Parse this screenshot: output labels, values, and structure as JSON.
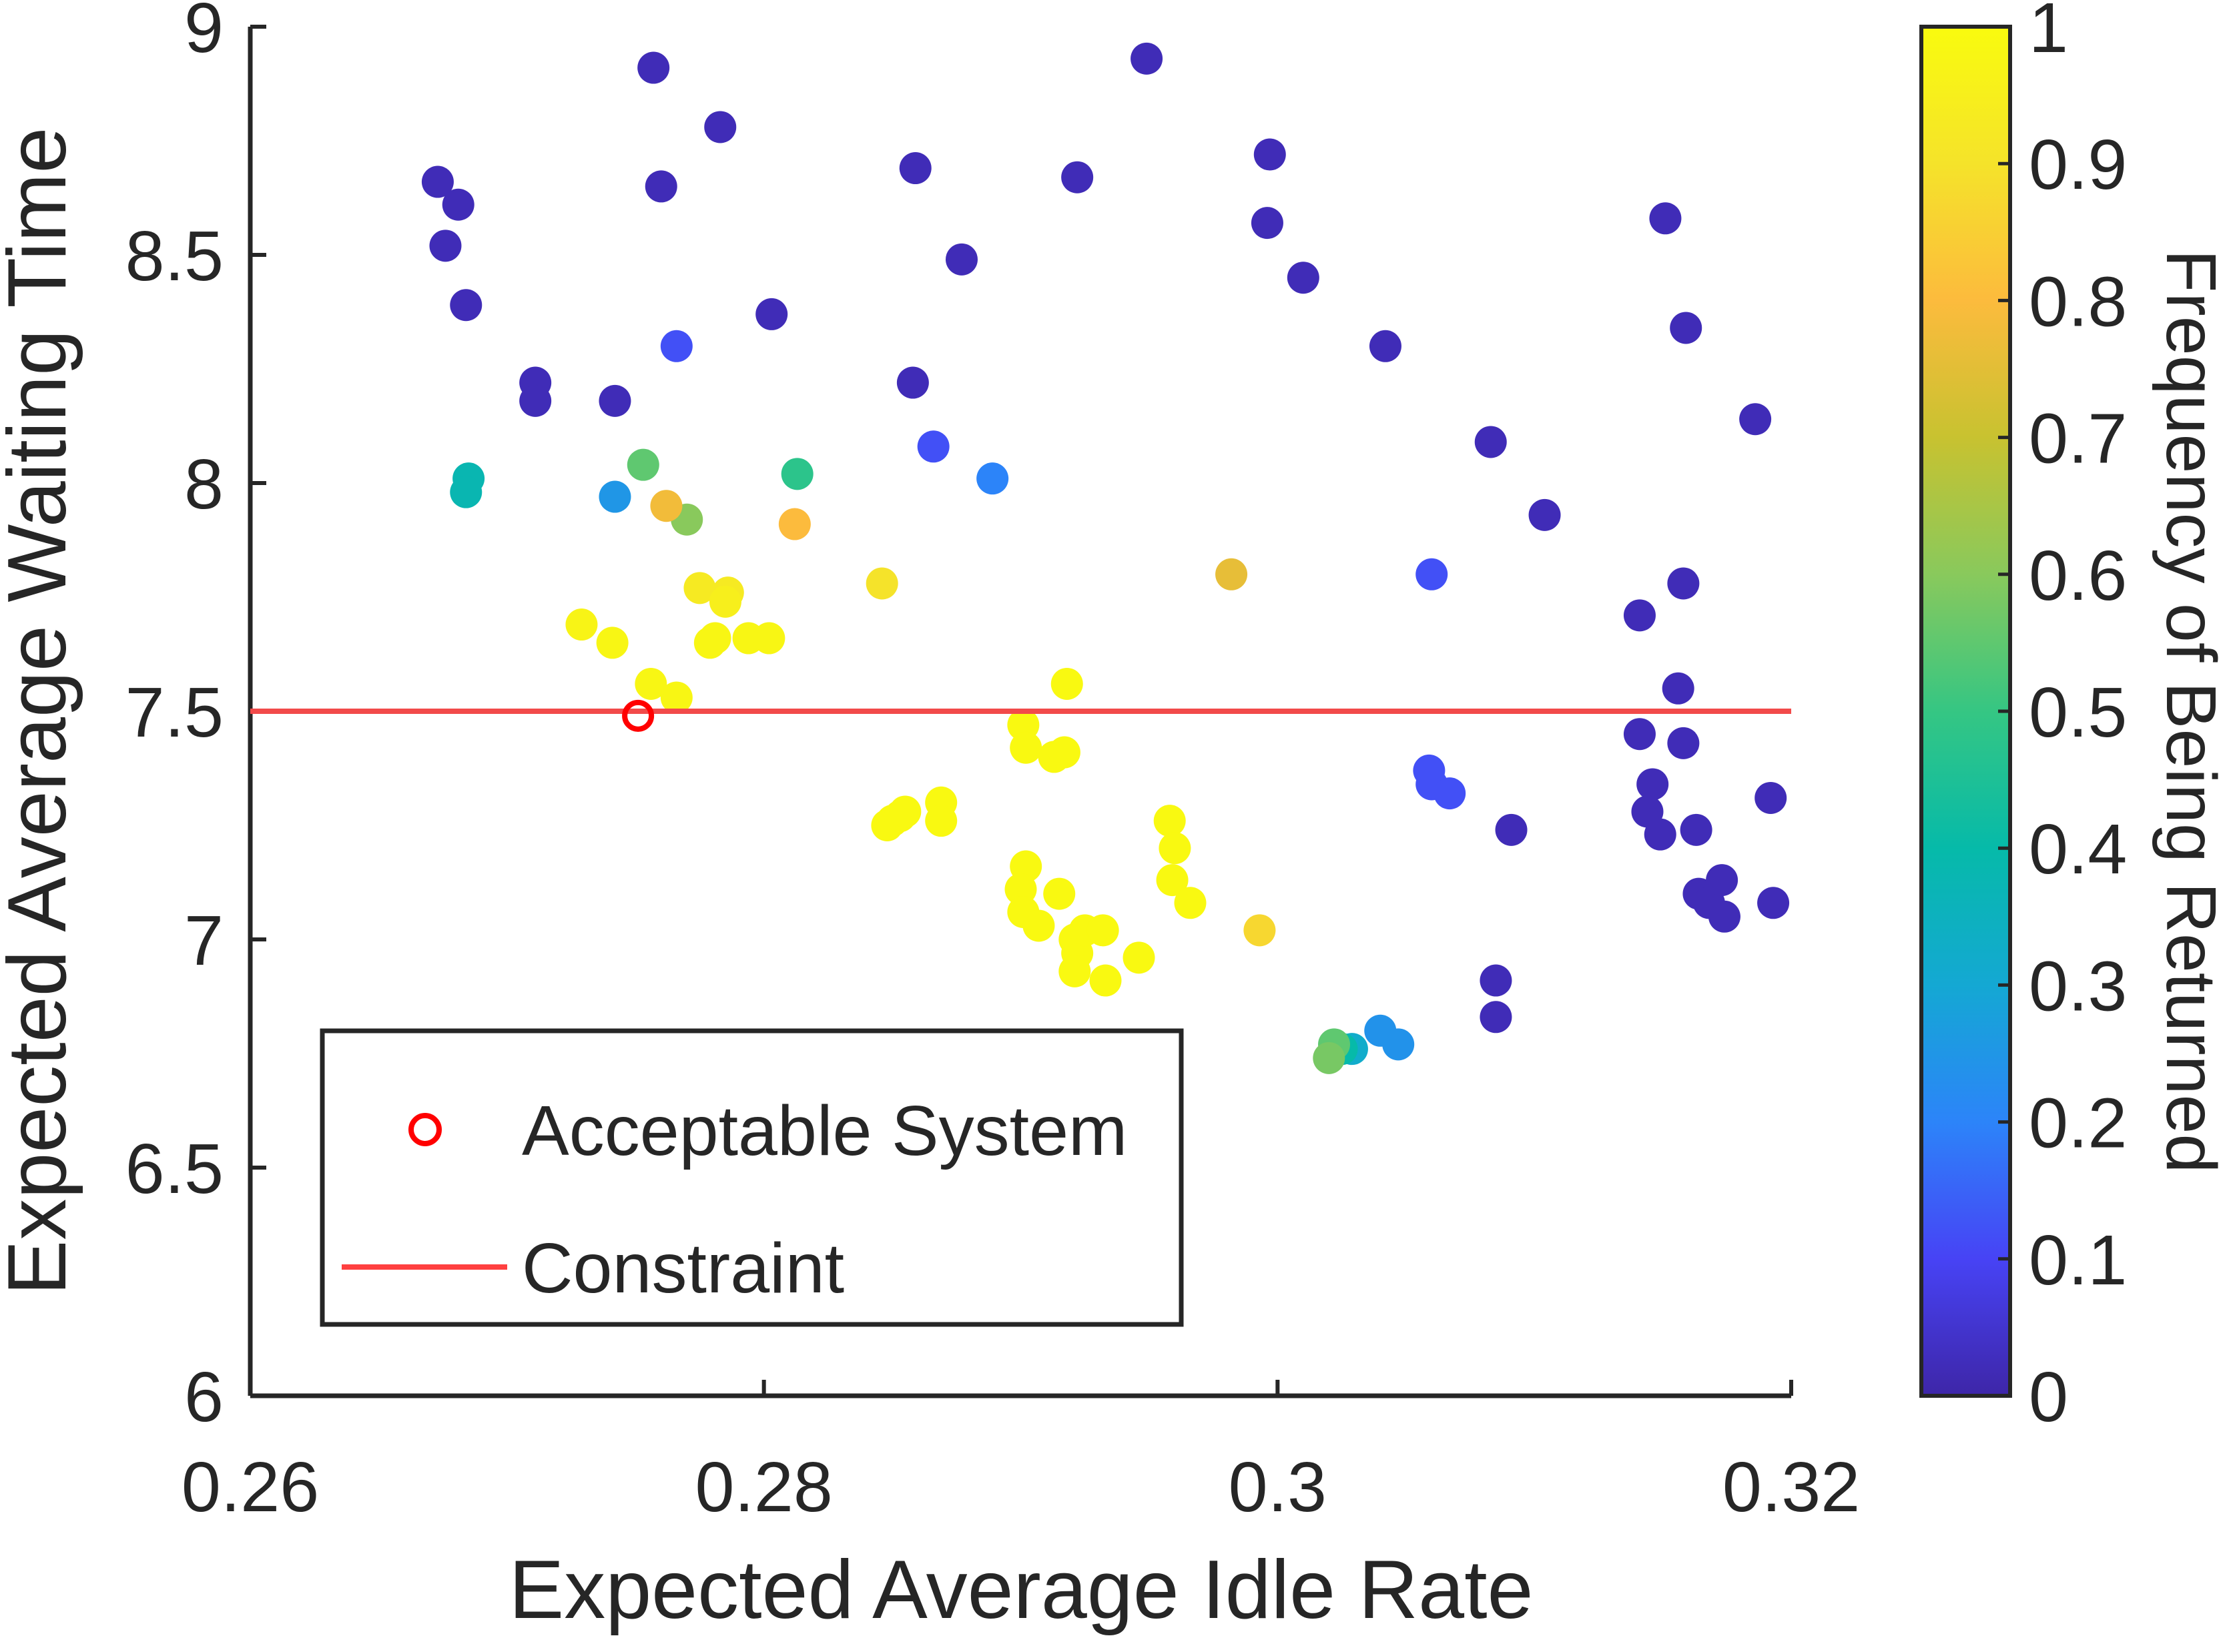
{
  "chart_data": {
    "type": "scatter",
    "title": "",
    "xlabel": "Expected Average Idle Rate",
    "ylabel": "Expected Average Waiting Time",
    "xlim": [
      0.26,
      0.32
    ],
    "ylim": [
      6,
      9
    ],
    "xticks": [
      0.26,
      0.28,
      0.3,
      0.32
    ],
    "xtick_labels": [
      "0.26",
      "0.28",
      "0.3",
      "0.32"
    ],
    "yticks": [
      6,
      6.5,
      7,
      7.5,
      8,
      8.5,
      9
    ],
    "ytick_labels": [
      "6",
      "6.5",
      "7",
      "7.5",
      "8",
      "8.5",
      "9"
    ],
    "grid": false,
    "colorbar": {
      "label": "Frequency of Being Returned",
      "range": [
        0,
        1
      ],
      "ticks": [
        0,
        0.1,
        0.2,
        0.3,
        0.4,
        0.5,
        0.6,
        0.7,
        0.8,
        0.9,
        1
      ],
      "tick_labels": [
        "0",
        "0.1",
        "0.2",
        "0.3",
        "0.4",
        "0.5",
        "0.6",
        "0.7",
        "0.8",
        "0.9",
        "1"
      ],
      "colormap": "parula",
      "colormap_stops": [
        "#3E26A8",
        "#4743F5",
        "#2C84F9",
        "#14A8D3",
        "#06BAA9",
        "#35C683",
        "#89C95C",
        "#C8C230",
        "#FCBB3D",
        "#F5E32A",
        "#F9FB0E"
      ]
    },
    "legend": {
      "position": "bottom-left",
      "entries": [
        {
          "label": "Acceptable System",
          "marker": "circle-open",
          "color": "#FF0000"
        },
        {
          "label": "Constraint",
          "marker": "line",
          "color": "#FF4040"
        }
      ]
    },
    "constraint": {
      "y": 7.5,
      "color": "#F24A4A"
    },
    "acceptable_point": {
      "x": 0.2751,
      "y": 7.49,
      "color": "#FF0000"
    },
    "series": [
      {
        "color_by": "frequency",
        "points": [
          {
            "x": 0.2673,
            "y": 8.66,
            "c": 0.02
          },
          {
            "x": 0.2676,
            "y": 8.52,
            "c": 0.02
          },
          {
            "x": 0.2681,
            "y": 8.61,
            "c": 0.02
          },
          {
            "x": 0.2684,
            "y": 8.39,
            "c": 0.02
          },
          {
            "x": 0.2711,
            "y": 8.22,
            "c": 0.02
          },
          {
            "x": 0.2711,
            "y": 8.18,
            "c": 0.02
          },
          {
            "x": 0.2742,
            "y": 8.18,
            "c": 0.02
          },
          {
            "x": 0.2757,
            "y": 8.91,
            "c": 0.02
          },
          {
            "x": 0.276,
            "y": 8.65,
            "c": 0.02
          },
          {
            "x": 0.2783,
            "y": 8.78,
            "c": 0.02
          },
          {
            "x": 0.2803,
            "y": 8.37,
            "c": 0.02
          },
          {
            "x": 0.2859,
            "y": 8.69,
            "c": 0.02
          },
          {
            "x": 0.2858,
            "y": 8.22,
            "c": 0.02
          },
          {
            "x": 0.2877,
            "y": 8.49,
            "c": 0.02
          },
          {
            "x": 0.2922,
            "y": 8.67,
            "c": 0.02
          },
          {
            "x": 0.2949,
            "y": 8.93,
            "c": 0.02
          },
          {
            "x": 0.2997,
            "y": 8.72,
            "c": 0.02
          },
          {
            "x": 0.2996,
            "y": 8.57,
            "c": 0.02
          },
          {
            "x": 0.301,
            "y": 8.45,
            "c": 0.02
          },
          {
            "x": 0.3042,
            "y": 8.3,
            "c": 0.02
          },
          {
            "x": 0.3083,
            "y": 8.09,
            "c": 0.02
          },
          {
            "x": 0.3104,
            "y": 7.93,
            "c": 0.02
          },
          {
            "x": 0.3151,
            "y": 8.58,
            "c": 0.02
          },
          {
            "x": 0.3159,
            "y": 8.34,
            "c": 0.02
          },
          {
            "x": 0.3186,
            "y": 8.14,
            "c": 0.02
          },
          {
            "x": 0.3158,
            "y": 7.78,
            "c": 0.02
          },
          {
            "x": 0.3141,
            "y": 7.71,
            "c": 0.02
          },
          {
            "x": 0.3156,
            "y": 7.55,
            "c": 0.02
          },
          {
            "x": 0.3141,
            "y": 7.45,
            "c": 0.02
          },
          {
            "x": 0.3158,
            "y": 7.43,
            "c": 0.02
          },
          {
            "x": 0.3146,
            "y": 7.34,
            "c": 0.02
          },
          {
            "x": 0.3144,
            "y": 7.28,
            "c": 0.02
          },
          {
            "x": 0.3149,
            "y": 7.23,
            "c": 0.02
          },
          {
            "x": 0.3163,
            "y": 7.24,
            "c": 0.02
          },
          {
            "x": 0.3192,
            "y": 7.31,
            "c": 0.02
          },
          {
            "x": 0.3164,
            "y": 7.1,
            "c": 0.02
          },
          {
            "x": 0.3168,
            "y": 7.08,
            "c": 0.02
          },
          {
            "x": 0.3173,
            "y": 7.13,
            "c": 0.02
          },
          {
            "x": 0.3174,
            "y": 7.05,
            "c": 0.02
          },
          {
            "x": 0.3193,
            "y": 7.08,
            "c": 0.02
          },
          {
            "x": 0.3091,
            "y": 7.24,
            "c": 0.02
          },
          {
            "x": 0.3085,
            "y": 6.91,
            "c": 0.02
          },
          {
            "x": 0.3085,
            "y": 6.83,
            "c": 0.02
          },
          {
            "x": 0.2766,
            "y": 8.3,
            "c": 0.12
          },
          {
            "x": 0.2866,
            "y": 8.08,
            "c": 0.12
          },
          {
            "x": 0.306,
            "y": 7.8,
            "c": 0.12
          },
          {
            "x": 0.3059,
            "y": 7.37,
            "c": 0.12
          },
          {
            "x": 0.306,
            "y": 7.34,
            "c": 0.12
          },
          {
            "x": 0.3067,
            "y": 7.32,
            "c": 0.12
          },
          {
            "x": 0.2889,
            "y": 8.01,
            "c": 0.2
          },
          {
            "x": 0.2742,
            "y": 7.97,
            "c": 0.25
          },
          {
            "x": 0.304,
            "y": 6.8,
            "c": 0.24
          },
          {
            "x": 0.3047,
            "y": 6.77,
            "c": 0.24
          },
          {
            "x": 0.3029,
            "y": 6.76,
            "c": 0.32
          },
          {
            "x": 0.3025,
            "y": 6.76,
            "c": 0.4
          },
          {
            "x": 0.2685,
            "y": 8.01,
            "c": 0.38
          },
          {
            "x": 0.2684,
            "y": 7.98,
            "c": 0.38
          },
          {
            "x": 0.2813,
            "y": 8.02,
            "c": 0.48
          },
          {
            "x": 0.3022,
            "y": 6.77,
            "c": 0.55
          },
          {
            "x": 0.302,
            "y": 6.74,
            "c": 0.58
          },
          {
            "x": 0.2753,
            "y": 8.04,
            "c": 0.55
          },
          {
            "x": 0.277,
            "y": 7.92,
            "c": 0.6
          },
          {
            "x": 0.2762,
            "y": 7.95,
            "c": 0.78
          },
          {
            "x": 0.2812,
            "y": 7.91,
            "c": 0.8
          },
          {
            "x": 0.2982,
            "y": 7.8,
            "c": 0.76
          },
          {
            "x": 0.2993,
            "y": 7.02,
            "c": 0.87
          },
          {
            "x": 0.2846,
            "y": 7.78,
            "c": 0.9
          },
          {
            "x": 0.2775,
            "y": 7.77,
            "c": 0.93
          },
          {
            "x": 0.2786,
            "y": 7.76,
            "c": 0.93
          },
          {
            "x": 0.2785,
            "y": 7.74,
            "c": 0.95
          },
          {
            "x": 0.2729,
            "y": 7.69,
            "c": 0.97
          },
          {
            "x": 0.2741,
            "y": 7.65,
            "c": 0.98
          },
          {
            "x": 0.2779,
            "y": 7.65,
            "c": 0.98
          },
          {
            "x": 0.2781,
            "y": 7.66,
            "c": 0.98
          },
          {
            "x": 0.2794,
            "y": 7.66,
            "c": 0.98
          },
          {
            "x": 0.2802,
            "y": 7.66,
            "c": 0.98
          },
          {
            "x": 0.2756,
            "y": 7.56,
            "c": 0.98
          },
          {
            "x": 0.2766,
            "y": 7.53,
            "c": 0.98
          },
          {
            "x": 0.2918,
            "y": 7.56,
            "c": 0.99
          },
          {
            "x": 0.2901,
            "y": 7.47,
            "c": 0.99
          },
          {
            "x": 0.2902,
            "y": 7.42,
            "c": 0.99
          },
          {
            "x": 0.2913,
            "y": 7.4,
            "c": 0.99
          },
          {
            "x": 0.2917,
            "y": 7.41,
            "c": 0.99
          },
          {
            "x": 0.2848,
            "y": 7.25,
            "c": 0.99
          },
          {
            "x": 0.285,
            "y": 7.26,
            "c": 0.99
          },
          {
            "x": 0.2853,
            "y": 7.27,
            "c": 0.99
          },
          {
            "x": 0.2855,
            "y": 7.28,
            "c": 0.99
          },
          {
            "x": 0.2869,
            "y": 7.3,
            "c": 0.99
          },
          {
            "x": 0.2869,
            "y": 7.26,
            "c": 0.99
          },
          {
            "x": 0.2958,
            "y": 7.26,
            "c": 0.99
          },
          {
            "x": 0.296,
            "y": 7.2,
            "c": 0.99
          },
          {
            "x": 0.2959,
            "y": 7.13,
            "c": 0.99
          },
          {
            "x": 0.2966,
            "y": 7.08,
            "c": 0.99
          },
          {
            "x": 0.2902,
            "y": 7.16,
            "c": 0.99
          },
          {
            "x": 0.29,
            "y": 7.11,
            "c": 0.99
          },
          {
            "x": 0.2901,
            "y": 7.06,
            "c": 0.99
          },
          {
            "x": 0.2907,
            "y": 7.03,
            "c": 0.99
          },
          {
            "x": 0.2915,
            "y": 7.1,
            "c": 0.99
          },
          {
            "x": 0.2921,
            "y": 7.0,
            "c": 0.99
          },
          {
            "x": 0.2922,
            "y": 6.97,
            "c": 0.99
          },
          {
            "x": 0.2925,
            "y": 7.02,
            "c": 0.99
          },
          {
            "x": 0.2932,
            "y": 7.02,
            "c": 0.99
          },
          {
            "x": 0.2921,
            "y": 6.93,
            "c": 0.99
          },
          {
            "x": 0.2933,
            "y": 6.91,
            "c": 0.99
          },
          {
            "x": 0.2946,
            "y": 6.96,
            "c": 0.99
          }
        ]
      }
    ]
  }
}
